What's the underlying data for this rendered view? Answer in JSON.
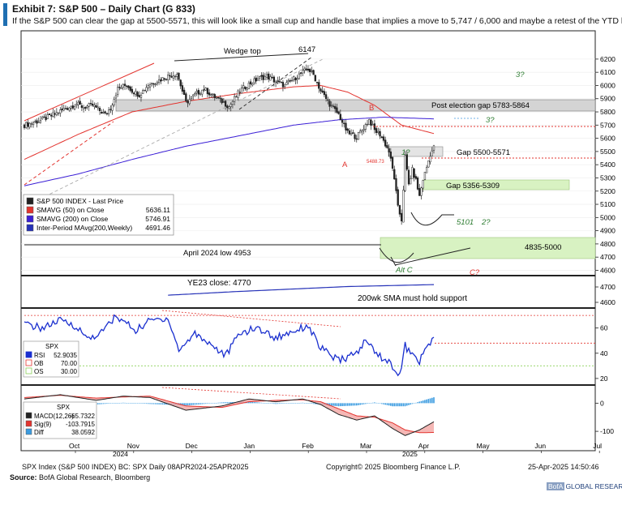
{
  "header": {
    "title": "Exhibit 7: S&P 500 – Daily Chart (G 833)",
    "subtitle": "If the S&P 500 can clear the gap at 5500-5571, this will look like a small cup and handle base that implies a move to 5,747 /  6,000 and maybe a retest of the YTD highs."
  },
  "chart_data": {
    "type": "candlestick",
    "main_panel": {
      "y_ticks": [
        4600,
        4700,
        4800,
        4900,
        5000,
        5100,
        5200,
        5300,
        5400,
        5500,
        5600,
        5700,
        5800,
        5900,
        6000,
        6100,
        6200
      ],
      "ylim": [
        4560,
        6230
      ],
      "x_labels": [
        "Oct",
        "Nov",
        "Dec",
        "Jan",
        "Feb",
        "Mar",
        "Apr",
        "May",
        "Jun",
        "Jul"
      ],
      "year_labels": [
        "2024",
        "2025"
      ],
      "date_range": [
        "2024-09-19",
        "2025-04-25"
      ],
      "close_path": [
        {
          "day": 0,
          "value": 5700
        },
        {
          "day": 8,
          "value": 5730
        },
        {
          "day": 15,
          "value": 5770
        },
        {
          "day": 22,
          "value": 5820
        },
        {
          "day": 29,
          "value": 5860
        },
        {
          "day": 33,
          "value": 5835
        },
        {
          "day": 38,
          "value": 5850
        },
        {
          "day": 45,
          "value": 5780
        },
        {
          "day": 48,
          "value": 5830
        },
        {
          "day": 52,
          "value": 5975
        },
        {
          "day": 57,
          "value": 6005
        },
        {
          "day": 60,
          "value": 5960
        },
        {
          "day": 64,
          "value": 5930
        },
        {
          "day": 69,
          "value": 6005
        },
        {
          "day": 74,
          "value": 6035
        },
        {
          "day": 80,
          "value": 6070
        },
        {
          "day": 85,
          "value": 6090
        },
        {
          "day": 90,
          "value": 5870
        },
        {
          "day": 95,
          "value": 5930
        },
        {
          "day": 100,
          "value": 5975
        },
        {
          "day": 105,
          "value": 5920
        },
        {
          "day": 110,
          "value": 5880
        },
        {
          "day": 114,
          "value": 5840
        },
        {
          "day": 120,
          "value": 5960
        },
        {
          "day": 125,
          "value": 6010
        },
        {
          "day": 130,
          "value": 6050
        },
        {
          "day": 135,
          "value": 6070
        },
        {
          "day": 140,
          "value": 6030
        },
        {
          "day": 145,
          "value": 6000
        },
        {
          "day": 150,
          "value": 6050
        },
        {
          "day": 155,
          "value": 6100
        },
        {
          "day": 158,
          "value": 6125
        },
        {
          "day": 161,
          "value": 6080
        },
        {
          "day": 165,
          "value": 5960
        },
        {
          "day": 170,
          "value": 5860
        },
        {
          "day": 175,
          "value": 5780
        },
        {
          "day": 180,
          "value": 5640
        },
        {
          "day": 185,
          "value": 5610
        },
        {
          "day": 190,
          "value": 5700
        },
        {
          "day": 192,
          "value": 5740
        },
        {
          "day": 195,
          "value": 5660
        },
        {
          "day": 198,
          "value": 5630
        },
        {
          "day": 200,
          "value": 5580
        },
        {
          "day": 203,
          "value": 5500
        },
        {
          "day": 206,
          "value": 5300
        },
        {
          "day": 208,
          "value": 5074
        },
        {
          "day": 210,
          "value": 4982
        },
        {
          "day": 212,
          "value": 5456
        },
        {
          "day": 214,
          "value": 5250
        },
        {
          "day": 216,
          "value": 5360
        },
        {
          "day": 218,
          "value": 5280
        },
        {
          "day": 220,
          "value": 5160
        },
        {
          "day": 222,
          "value": 5290
        },
        {
          "day": 224,
          "value": 5380
        },
        {
          "day": 226,
          "value": 5480
        },
        {
          "day": 228,
          "value": 5530
        }
      ],
      "sma50_path": [
        {
          "day": 0,
          "value": 5440
        },
        {
          "day": 30,
          "value": 5630
        },
        {
          "day": 60,
          "value": 5800
        },
        {
          "day": 90,
          "value": 5880
        },
        {
          "day": 120,
          "value": 5940
        },
        {
          "day": 150,
          "value": 5990
        },
        {
          "day": 165,
          "value": 6000
        },
        {
          "day": 180,
          "value": 5950
        },
        {
          "day": 195,
          "value": 5850
        },
        {
          "day": 210,
          "value": 5700
        },
        {
          "day": 228,
          "value": 5636
        }
      ],
      "sma200_path": [
        {
          "day": 0,
          "value": 5240
        },
        {
          "day": 30,
          "value": 5330
        },
        {
          "day": 60,
          "value": 5440
        },
        {
          "day": 90,
          "value": 5540
        },
        {
          "day": 120,
          "value": 5620
        },
        {
          "day": 150,
          "value": 5700
        },
        {
          "day": 175,
          "value": 5740
        },
        {
          "day": 200,
          "value": 5760
        },
        {
          "day": 228,
          "value": 5747
        }
      ],
      "wma200_path": [
        {
          "day": 0,
          "value": 4500
        },
        {
          "day": 60,
          "value": 4560
        },
        {
          "day": 120,
          "value": 4620
        },
        {
          "day": 180,
          "value": 4670
        },
        {
          "day": 228,
          "value": 4691
        }
      ],
      "legend": [
        {
          "name": "S&P 500 INDEX - Last Price",
          "value": "",
          "color": "#222222"
        },
        {
          "name": "SMAVG (50)  on Close",
          "value": "5636.11",
          "color": "#e3342f"
        },
        {
          "name": "SMAVG (200)  on Close",
          "value": "5746.91",
          "color": "#3b1fd6"
        },
        {
          "name": "Inter-Period MAvg(200,Weekly)",
          "value": "4691.46",
          "color": "#2632b8"
        }
      ],
      "annotations": {
        "wedge_top": "Wedge top",
        "peak": "6147",
        "post_election_gap": "Post election gap 5783-5864",
        "gap_5500": "Gap 5500-5571",
        "gap_5356": "Gap 5356-5309",
        "support_5101": "5101",
        "zone_4835": "4835-5000",
        "april_low": "April 2024 low 4953",
        "ye23_close": "YE23 close: 4770",
        "sma_support": "200wk SMA must hold support",
        "label_a": "A",
        "label_b": "B",
        "label_alt_c": "Alt C",
        "label_c": "C?",
        "label_1": "1?",
        "label_2": "2?",
        "label_3a": "3?",
        "label_3b": "3?",
        "small_value": "5488.73"
      }
    },
    "rsi_panel": {
      "y_ticks": [
        20,
        40,
        60
      ],
      "ylim": [
        18,
        72
      ],
      "legend_title": "SPX",
      "legend": [
        {
          "name": "RSI",
          "value": "52.9035",
          "color": "#1a2fcf"
        },
        {
          "name": "OB",
          "value": "70.00",
          "color": "#e3342f"
        },
        {
          "name": "OS",
          "value": "30.00",
          "color": "#8bd15a"
        }
      ],
      "path": [
        {
          "day": 0,
          "value": 63
        },
        {
          "day": 10,
          "value": 60
        },
        {
          "day": 20,
          "value": 66
        },
        {
          "day": 28,
          "value": 62
        },
        {
          "day": 35,
          "value": 52
        },
        {
          "day": 42,
          "value": 55
        },
        {
          "day": 50,
          "value": 68
        },
        {
          "day": 55,
          "value": 66
        },
        {
          "day": 62,
          "value": 58
        },
        {
          "day": 70,
          "value": 66
        },
        {
          "day": 80,
          "value": 68
        },
        {
          "day": 86,
          "value": 42
        },
        {
          "day": 95,
          "value": 56
        },
        {
          "day": 105,
          "value": 46
        },
        {
          "day": 112,
          "value": 38
        },
        {
          "day": 120,
          "value": 56
        },
        {
          "day": 130,
          "value": 60
        },
        {
          "day": 140,
          "value": 52
        },
        {
          "day": 150,
          "value": 58
        },
        {
          "day": 158,
          "value": 62
        },
        {
          "day": 165,
          "value": 44
        },
        {
          "day": 175,
          "value": 34
        },
        {
          "day": 185,
          "value": 40
        },
        {
          "day": 190,
          "value": 50
        },
        {
          "day": 198,
          "value": 38
        },
        {
          "day": 205,
          "value": 30
        },
        {
          "day": 209,
          "value": 22
        },
        {
          "day": 212,
          "value": 46
        },
        {
          "day": 216,
          "value": 38
        },
        {
          "day": 220,
          "value": 34
        },
        {
          "day": 224,
          "value": 44
        },
        {
          "day": 228,
          "value": 53
        }
      ]
    },
    "macd_panel": {
      "y_ticks": [
        -100,
        0
      ],
      "ylim": [
        -140,
        50
      ],
      "legend_title": "SPX",
      "legend": [
        {
          "name": "MACD(12,26)",
          "value": "-65.7322",
          "color": "#222222"
        },
        {
          "name": "Sig(9)",
          "value": "-103.7915",
          "color": "#e3342f"
        },
        {
          "name": "Diff",
          "value": "38.0592",
          "color": "#3a9be0"
        }
      ],
      "macd_path": [
        {
          "day": 0,
          "value": 15
        },
        {
          "day": 20,
          "value": 30
        },
        {
          "day": 40,
          "value": 10
        },
        {
          "day": 55,
          "value": 25
        },
        {
          "day": 70,
          "value": 20
        },
        {
          "day": 90,
          "value": -25
        },
        {
          "day": 110,
          "value": -10
        },
        {
          "day": 125,
          "value": 15
        },
        {
          "day": 140,
          "value": 5
        },
        {
          "day": 155,
          "value": 15
        },
        {
          "day": 165,
          "value": -5
        },
        {
          "day": 175,
          "value": -40
        },
        {
          "day": 185,
          "value": -60
        },
        {
          "day": 195,
          "value": -45
        },
        {
          "day": 205,
          "value": -90
        },
        {
          "day": 212,
          "value": -115
        },
        {
          "day": 220,
          "value": -95
        },
        {
          "day": 228,
          "value": -66
        }
      ],
      "signal_path": [
        {
          "day": 0,
          "value": 20
        },
        {
          "day": 20,
          "value": 28
        },
        {
          "day": 40,
          "value": 18
        },
        {
          "day": 55,
          "value": 22
        },
        {
          "day": 70,
          "value": 25
        },
        {
          "day": 90,
          "value": -10
        },
        {
          "day": 110,
          "value": -15
        },
        {
          "day": 125,
          "value": 5
        },
        {
          "day": 140,
          "value": 10
        },
        {
          "day": 155,
          "value": 12
        },
        {
          "day": 165,
          "value": 5
        },
        {
          "day": 175,
          "value": -20
        },
        {
          "day": 185,
          "value": -45
        },
        {
          "day": 195,
          "value": -50
        },
        {
          "day": 205,
          "value": -70
        },
        {
          "day": 212,
          "value": -95
        },
        {
          "day": 220,
          "value": -105
        },
        {
          "day": 228,
          "value": -104
        }
      ]
    }
  },
  "footer": {
    "left": "SPX Index (S&P 500 INDEX) BC: SPX  Daily 08APR2024-25APR2025",
    "center": "Copyright© 2025 Bloomberg Finance L.P.",
    "right": "25-Apr-2025 14:50:46",
    "source_label": "Source:",
    "source_text": " BofA Global Research, Bloomberg",
    "brand_box": "BofA",
    "brand_text": "GLOBAL RESEARCH"
  }
}
